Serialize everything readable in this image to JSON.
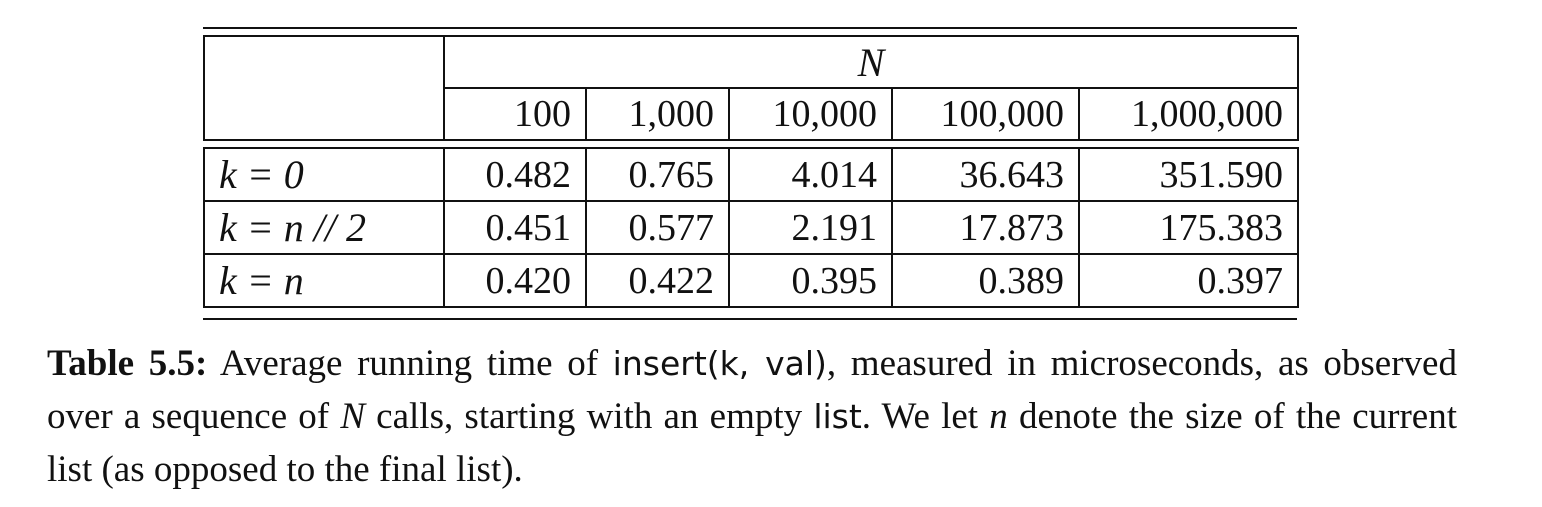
{
  "table": {
    "header_main": "N",
    "columns": [
      "100",
      "1,000",
      "10,000",
      "100,000",
      "1,000,000"
    ],
    "rows": [
      {
        "label": "k = 0",
        "values": [
          "0.482",
          "0.765",
          "4.014",
          "36.643",
          "351.590"
        ]
      },
      {
        "label": "k = n // 2",
        "values": [
          "0.451",
          "0.577",
          "2.191",
          "17.873",
          "175.383"
        ]
      },
      {
        "label": "k = n",
        "values": [
          "0.420",
          "0.422",
          "0.395",
          "0.389",
          "0.397"
        ]
      }
    ]
  },
  "caption": {
    "label": "Table 5.5:",
    "t1": " Average running time of ",
    "code1": "insert(k, val)",
    "t2": ", measured in microseconds, as observed over a sequence of ",
    "var_N": "N",
    "t3": " calls, starting with an empty ",
    "code2": "list",
    "t4": ". We let ",
    "var_n": "n",
    "t5": " denote the size of the current list (as opposed to the final list)."
  }
}
